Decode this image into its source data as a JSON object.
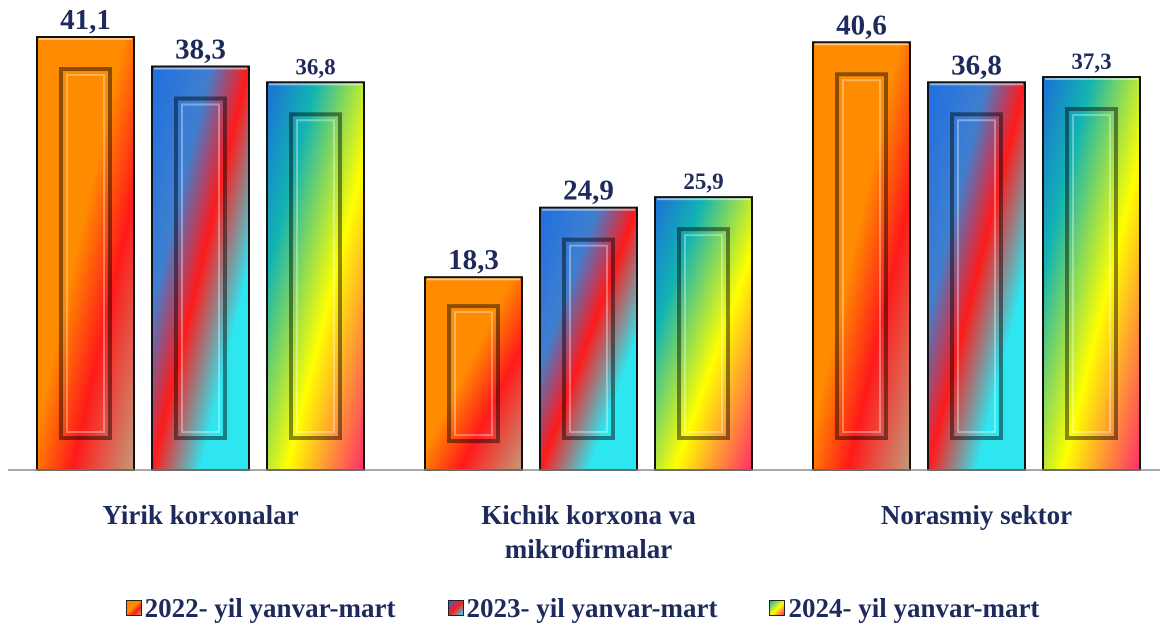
{
  "chart_data": {
    "type": "bar",
    "categories": [
      "Yirik korxonalar",
      "Kichik korxona va mikrofirmalar",
      "Norasmiy sektor"
    ],
    "category_lines": [
      [
        "Yirik korxonalar"
      ],
      [
        "Kichik korxona va",
        "mikrofirmalar"
      ],
      [
        "Norasmiy sektor"
      ]
    ],
    "series": [
      {
        "name": "2022- yil yanvar-mart",
        "values": [
          41.1,
          18.3,
          40.6
        ],
        "labels": [
          "41,1",
          "18,3",
          "40,6"
        ]
      },
      {
        "name": "2023- yil yanvar-mart",
        "values": [
          38.3,
          24.9,
          36.8
        ],
        "labels": [
          "38,3",
          "24,9",
          "36,8"
        ]
      },
      {
        "name": "2024- yil yanvar-mart",
        "values": [
          36.8,
          25.9,
          37.3
        ],
        "labels": [
          "36,8",
          "25,9",
          "37,3"
        ]
      }
    ],
    "ylim": [
      0,
      41.1
    ],
    "grid": false,
    "legend_position": "bottom",
    "colors": {
      "label_text": "#1f2a5c",
      "series_2022": [
        "#ff8c00",
        "#ff1a1a",
        "#c49a7a"
      ],
      "series_2023": [
        "#1e6fe0",
        "#ff1a1a",
        "#2ee6f0"
      ],
      "series_2024": [
        "#12b3b3",
        "#ffff00",
        "#ff2d6b"
      ]
    }
  }
}
